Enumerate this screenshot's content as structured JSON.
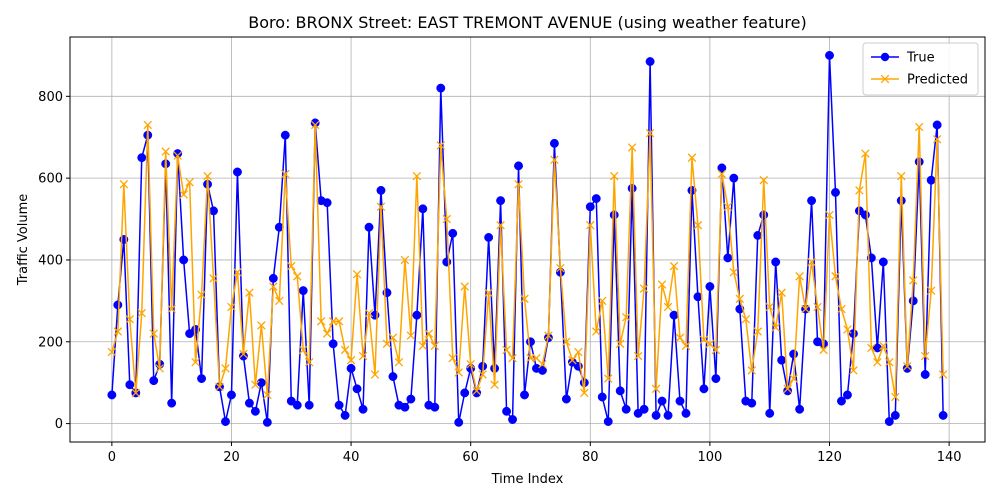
{
  "chart_data": {
    "type": "line",
    "title": "Boro: BRONX Street: EAST TREMONT AVENUE (using weather feature)",
    "xlabel": "Time Index",
    "ylabel": "Traffic Volume",
    "xlim": [
      -7,
      146
    ],
    "ylim": [
      -45,
      945
    ],
    "xticks": [
      0,
      20,
      40,
      60,
      80,
      100,
      120,
      140
    ],
    "yticks": [
      0,
      200,
      400,
      600,
      800
    ],
    "grid": true,
    "legend_position": "top-right",
    "series": [
      {
        "name": "True",
        "color": "#0000ff",
        "marker": "circle",
        "values": [
          70,
          290,
          450,
          95,
          75,
          650,
          705,
          105,
          145,
          635,
          50,
          660,
          400,
          220,
          230,
          110,
          585,
          520,
          90,
          5,
          70,
          615,
          165,
          50,
          30,
          100,
          3,
          355,
          480,
          705,
          55,
          45,
          325,
          45,
          735,
          545,
          540,
          195,
          45,
          20,
          135,
          85,
          35,
          480,
          265,
          570,
          320,
          115,
          45,
          40,
          60,
          265,
          525,
          45,
          40,
          820,
          395,
          465,
          3,
          75,
          135,
          75,
          140,
          455,
          135,
          545,
          30,
          10,
          630,
          70,
          200,
          135,
          130,
          210,
          685,
          370,
          60,
          150,
          140,
          100,
          530,
          550,
          65,
          5,
          510,
          80,
          35,
          575,
          25,
          35,
          885,
          20,
          55,
          20,
          265,
          55,
          25,
          570,
          310,
          85,
          335,
          110,
          625,
          405,
          600,
          280,
          55,
          50,
          460,
          510,
          25,
          395,
          155,
          80,
          170,
          35,
          280,
          545,
          200,
          195,
          900,
          565,
          55,
          70,
          220,
          520,
          510,
          405,
          185,
          395,
          5,
          20,
          545,
          135,
          300,
          640,
          120,
          595,
          730,
          20
        ]
      },
      {
        "name": "Predicted",
        "color": "#ffa500",
        "marker": "x",
        "values": [
          175,
          225,
          585,
          255,
          75,
          270,
          730,
          220,
          135,
          665,
          280,
          655,
          560,
          590,
          150,
          315,
          605,
          355,
          90,
          135,
          285,
          370,
          170,
          320,
          95,
          240,
          70,
          335,
          300,
          610,
          385,
          360,
          180,
          150,
          730,
          250,
          220,
          250,
          250,
          180,
          155,
          365,
          165,
          270,
          120,
          530,
          195,
          210,
          150,
          400,
          215,
          605,
          190,
          220,
          190,
          680,
          500,
          160,
          125,
          335,
          145,
          80,
          120,
          320,
          95,
          485,
          180,
          160,
          585,
          305,
          160,
          160,
          145,
          215,
          645,
          380,
          200,
          155,
          175,
          75,
          485,
          225,
          300,
          110,
          605,
          195,
          260,
          675,
          165,
          330,
          710,
          85,
          340,
          285,
          385,
          210,
          190,
          650,
          485,
          205,
          195,
          180,
          610,
          530,
          370,
          305,
          255,
          130,
          225,
          595,
          285,
          235,
          320,
          85,
          110,
          360,
          280,
          395,
          285,
          180,
          510,
          360,
          280,
          230,
          130,
          570,
          660,
          185,
          150,
          190,
          150,
          65,
          605,
          140,
          350,
          725,
          165,
          325,
          695,
          120
        ]
      }
    ]
  }
}
